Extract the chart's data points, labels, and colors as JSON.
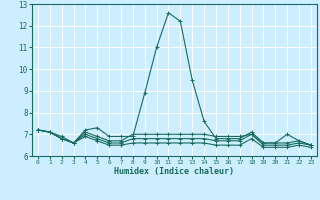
{
  "xlabel": "Humidex (Indice chaleur)",
  "ylabel": "",
  "background_color": "#cceeff",
  "grid_color": "#ffffff",
  "line_color": "#1a6b5e",
  "xlim": [
    -0.5,
    23.5
  ],
  "ylim": [
    6,
    13
  ],
  "xticks": [
    0,
    1,
    2,
    3,
    4,
    5,
    6,
    7,
    8,
    9,
    10,
    11,
    12,
    13,
    14,
    15,
    16,
    17,
    18,
    19,
    20,
    21,
    22,
    23
  ],
  "yticks": [
    6,
    7,
    8,
    9,
    10,
    11,
    12,
    13
  ],
  "series": [
    [
      7.2,
      7.1,
      6.8,
      6.6,
      7.2,
      7.3,
      6.9,
      6.9,
      6.9,
      8.9,
      11.0,
      12.6,
      12.2,
      9.5,
      7.6,
      6.8,
      6.8,
      6.8,
      7.1,
      6.6,
      6.6,
      7.0,
      6.7,
      6.5
    ],
    [
      7.2,
      7.1,
      6.8,
      6.6,
      7.1,
      6.9,
      6.7,
      6.7,
      7.0,
      7.0,
      7.0,
      7.0,
      7.0,
      7.0,
      7.0,
      6.9,
      6.9,
      6.9,
      7.0,
      6.6,
      6.6,
      6.6,
      6.7,
      6.5
    ],
    [
      7.2,
      7.1,
      6.9,
      6.6,
      7.0,
      6.8,
      6.6,
      6.6,
      6.8,
      6.8,
      6.8,
      6.8,
      6.8,
      6.8,
      6.8,
      6.7,
      6.7,
      6.7,
      7.0,
      6.5,
      6.5,
      6.5,
      6.6,
      6.5
    ],
    [
      7.2,
      7.1,
      6.8,
      6.6,
      6.9,
      6.7,
      6.5,
      6.5,
      6.6,
      6.6,
      6.6,
      6.6,
      6.6,
      6.6,
      6.6,
      6.5,
      6.5,
      6.5,
      6.8,
      6.4,
      6.4,
      6.4,
      6.5,
      6.4
    ]
  ]
}
